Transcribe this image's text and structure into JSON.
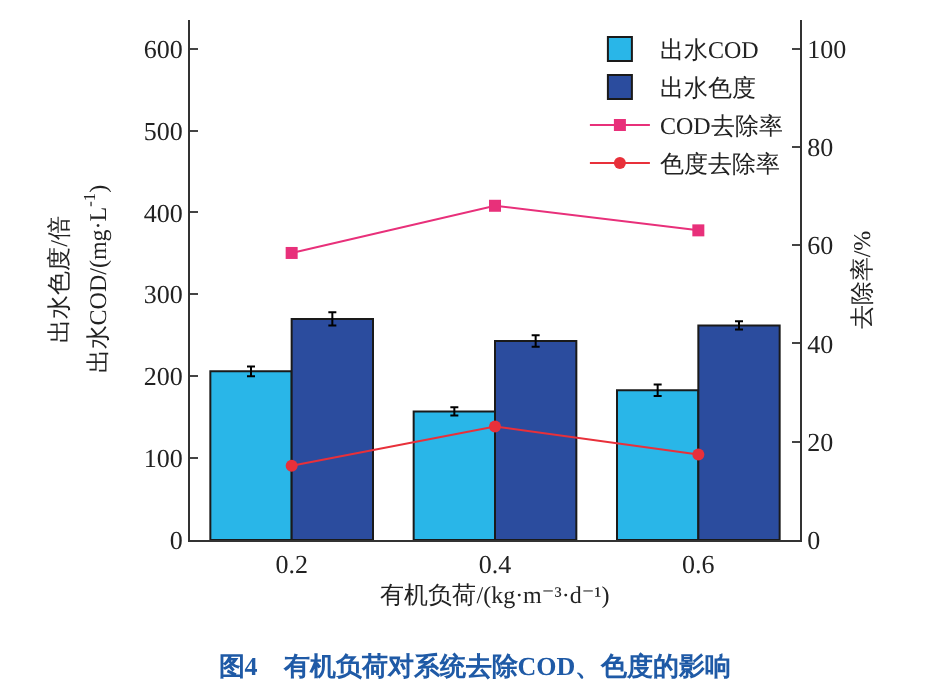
{
  "chart_data": {
    "type": "bar",
    "title": "图4　有机负荷对系统去除COD、色度的影响",
    "xlabel": "有机负荷/(kg·m⁻³·d⁻¹)",
    "ylabel": [
      "出水色度/倍",
      "出水COD/(mg·L$^{-1}$)"
    ],
    "y2label": "去除率/%",
    "categories": [
      "0.2",
      "0.4",
      "0.6"
    ],
    "series": [
      {
        "name": "出水COD",
        "color": "#29b6e8",
        "values": [
          206,
          157,
          183
        ],
        "errors": [
          6,
          5,
          7
        ]
      },
      {
        "name": "出水色度",
        "color": "#2b4c9e",
        "values": [
          270,
          243,
          262
        ],
        "errors": [
          8,
          7,
          5
        ]
      },
      {
        "name": "COD去除率",
        "type": "line",
        "axis": "y2",
        "marker": "square",
        "color": "#e8307a",
        "values": [
          58.4,
          68.0,
          63.0
        ]
      },
      {
        "name": "色度去除率",
        "type": "line",
        "axis": "y2",
        "marker": "circle",
        "color": "#e8303a",
        "values": [
          15.1,
          23.1,
          17.4
        ]
      }
    ],
    "ylim": [
      0,
      635
    ],
    "yticks": [
      0,
      100,
      200,
      300,
      400,
      500,
      600
    ],
    "y2lim": [
      0,
      105.8
    ],
    "y2ticks": [
      0,
      20,
      40,
      60,
      80,
      100
    ],
    "legend": "top right"
  }
}
